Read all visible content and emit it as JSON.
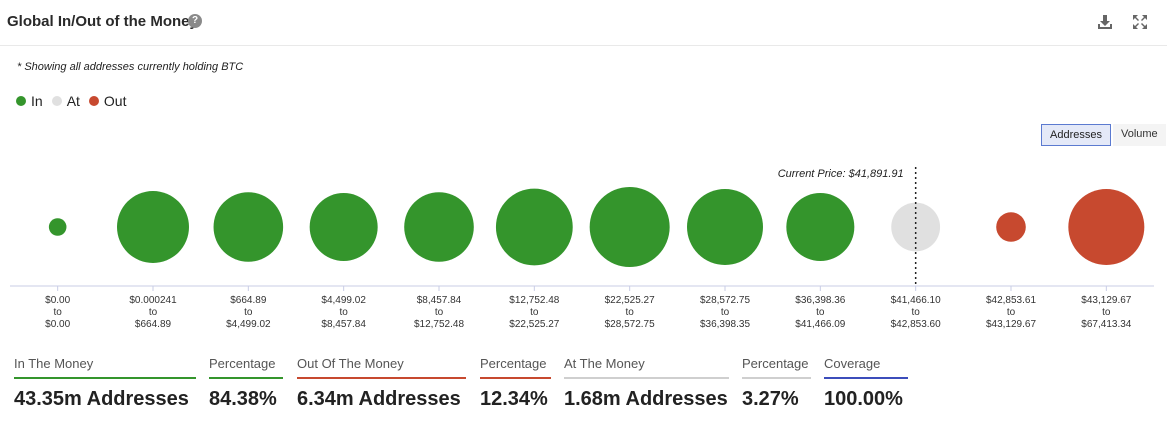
{
  "header": {
    "title": "Global In/Out of the Money",
    "help_glyph": "?"
  },
  "note": "* Showing all addresses currently holding BTC",
  "legend": [
    {
      "label": "In",
      "color": "#34952c"
    },
    {
      "label": "At",
      "color": "#e0e0e0"
    },
    {
      "label": "Out",
      "color": "#c7492f"
    }
  ],
  "toggle": {
    "addresses_label": "Addresses",
    "volume_label": "Volume"
  },
  "chart_data": {
    "type": "bubble",
    "title": "Global In/Out of the Money",
    "current_price_label": "Current Price: $41,891.91",
    "current_price": 41891.91,
    "colors": {
      "in": "#34952c",
      "at": "#e0e0e0",
      "out": "#c7492f"
    },
    "categories": [
      {
        "low": "$0.00",
        "high": "$0.00",
        "status": "in",
        "relative_size": 0.22
      },
      {
        "low": "$0.000241",
        "high": "$664.89",
        "status": "in",
        "relative_size": 0.9
      },
      {
        "low": "$664.89",
        "high": "$4,499.02",
        "status": "in",
        "relative_size": 0.87
      },
      {
        "low": "$4,499.02",
        "high": "$8,457.84",
        "status": "in",
        "relative_size": 0.85
      },
      {
        "low": "$8,457.84",
        "high": "$12,752.48",
        "status": "in",
        "relative_size": 0.87
      },
      {
        "low": "$12,752.48",
        "high": "$22,525.27",
        "status": "in",
        "relative_size": 0.96
      },
      {
        "low": "$22,525.27",
        "high": "$28,572.75",
        "status": "in",
        "relative_size": 1.0
      },
      {
        "low": "$28,572.75",
        "high": "$36,398.35",
        "status": "in",
        "relative_size": 0.95
      },
      {
        "low": "$36,398.36",
        "high": "$41,466.09",
        "status": "in",
        "relative_size": 0.85
      },
      {
        "low": "$41,466.10",
        "high": "$42,853.60",
        "status": "at",
        "relative_size": 0.61
      },
      {
        "low": "$42,853.61",
        "high": "$43,129.67",
        "status": "out",
        "relative_size": 0.37
      },
      {
        "low": "$43,129.67",
        "high": "$67,413.34",
        "status": "out",
        "relative_size": 0.95
      }
    ],
    "range_separator": "to"
  },
  "stats": [
    {
      "label": "In The Money",
      "value": "43.35m Addresses",
      "color": "#34952c"
    },
    {
      "label": "Percentage",
      "value": "84.38%",
      "color": "#34952c"
    },
    {
      "label": "Out Of The Money",
      "value": "6.34m Addresses",
      "color": "#c7492f"
    },
    {
      "label": "Percentage",
      "value": "12.34%",
      "color": "#c7492f"
    },
    {
      "label": "At The Money",
      "value": "1.68m Addresses",
      "color": "#cfcfcf"
    },
    {
      "label": "Percentage",
      "value": "3.27%",
      "color": "#cfcfcf"
    },
    {
      "label": "Coverage",
      "value": "100.00%",
      "color": "#3c4dbb"
    }
  ]
}
